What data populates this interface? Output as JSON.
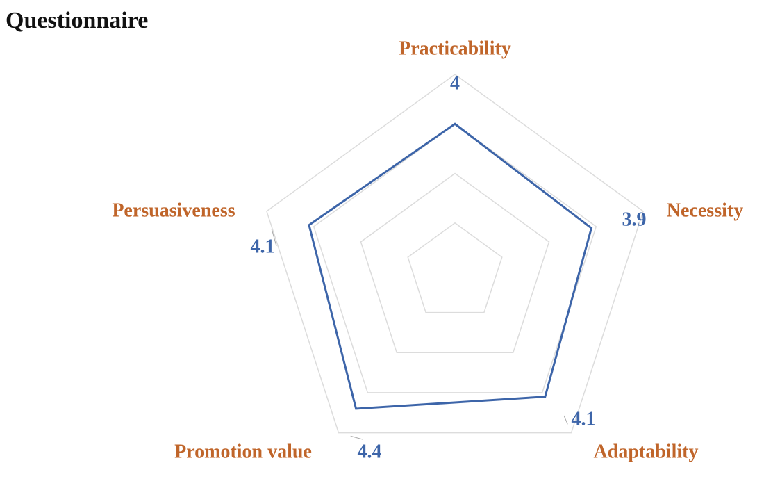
{
  "chart_data": {
    "type": "radar",
    "title": "Questionnaire",
    "categories": [
      "Practicability",
      "Necessity",
      "Adaptability",
      "Promotion value",
      "Persuasiveness"
    ],
    "series": [
      {
        "color": "#3d65a9",
        "values": [
          4,
          3.9,
          4.1,
          4.4,
          4.1
        ]
      }
    ],
    "label_color": "#c0652a",
    "grid_color": "#dcdcdc",
    "rlim": [
      1,
      5
    ],
    "rticks": [
      1,
      2,
      3,
      4,
      5
    ]
  }
}
